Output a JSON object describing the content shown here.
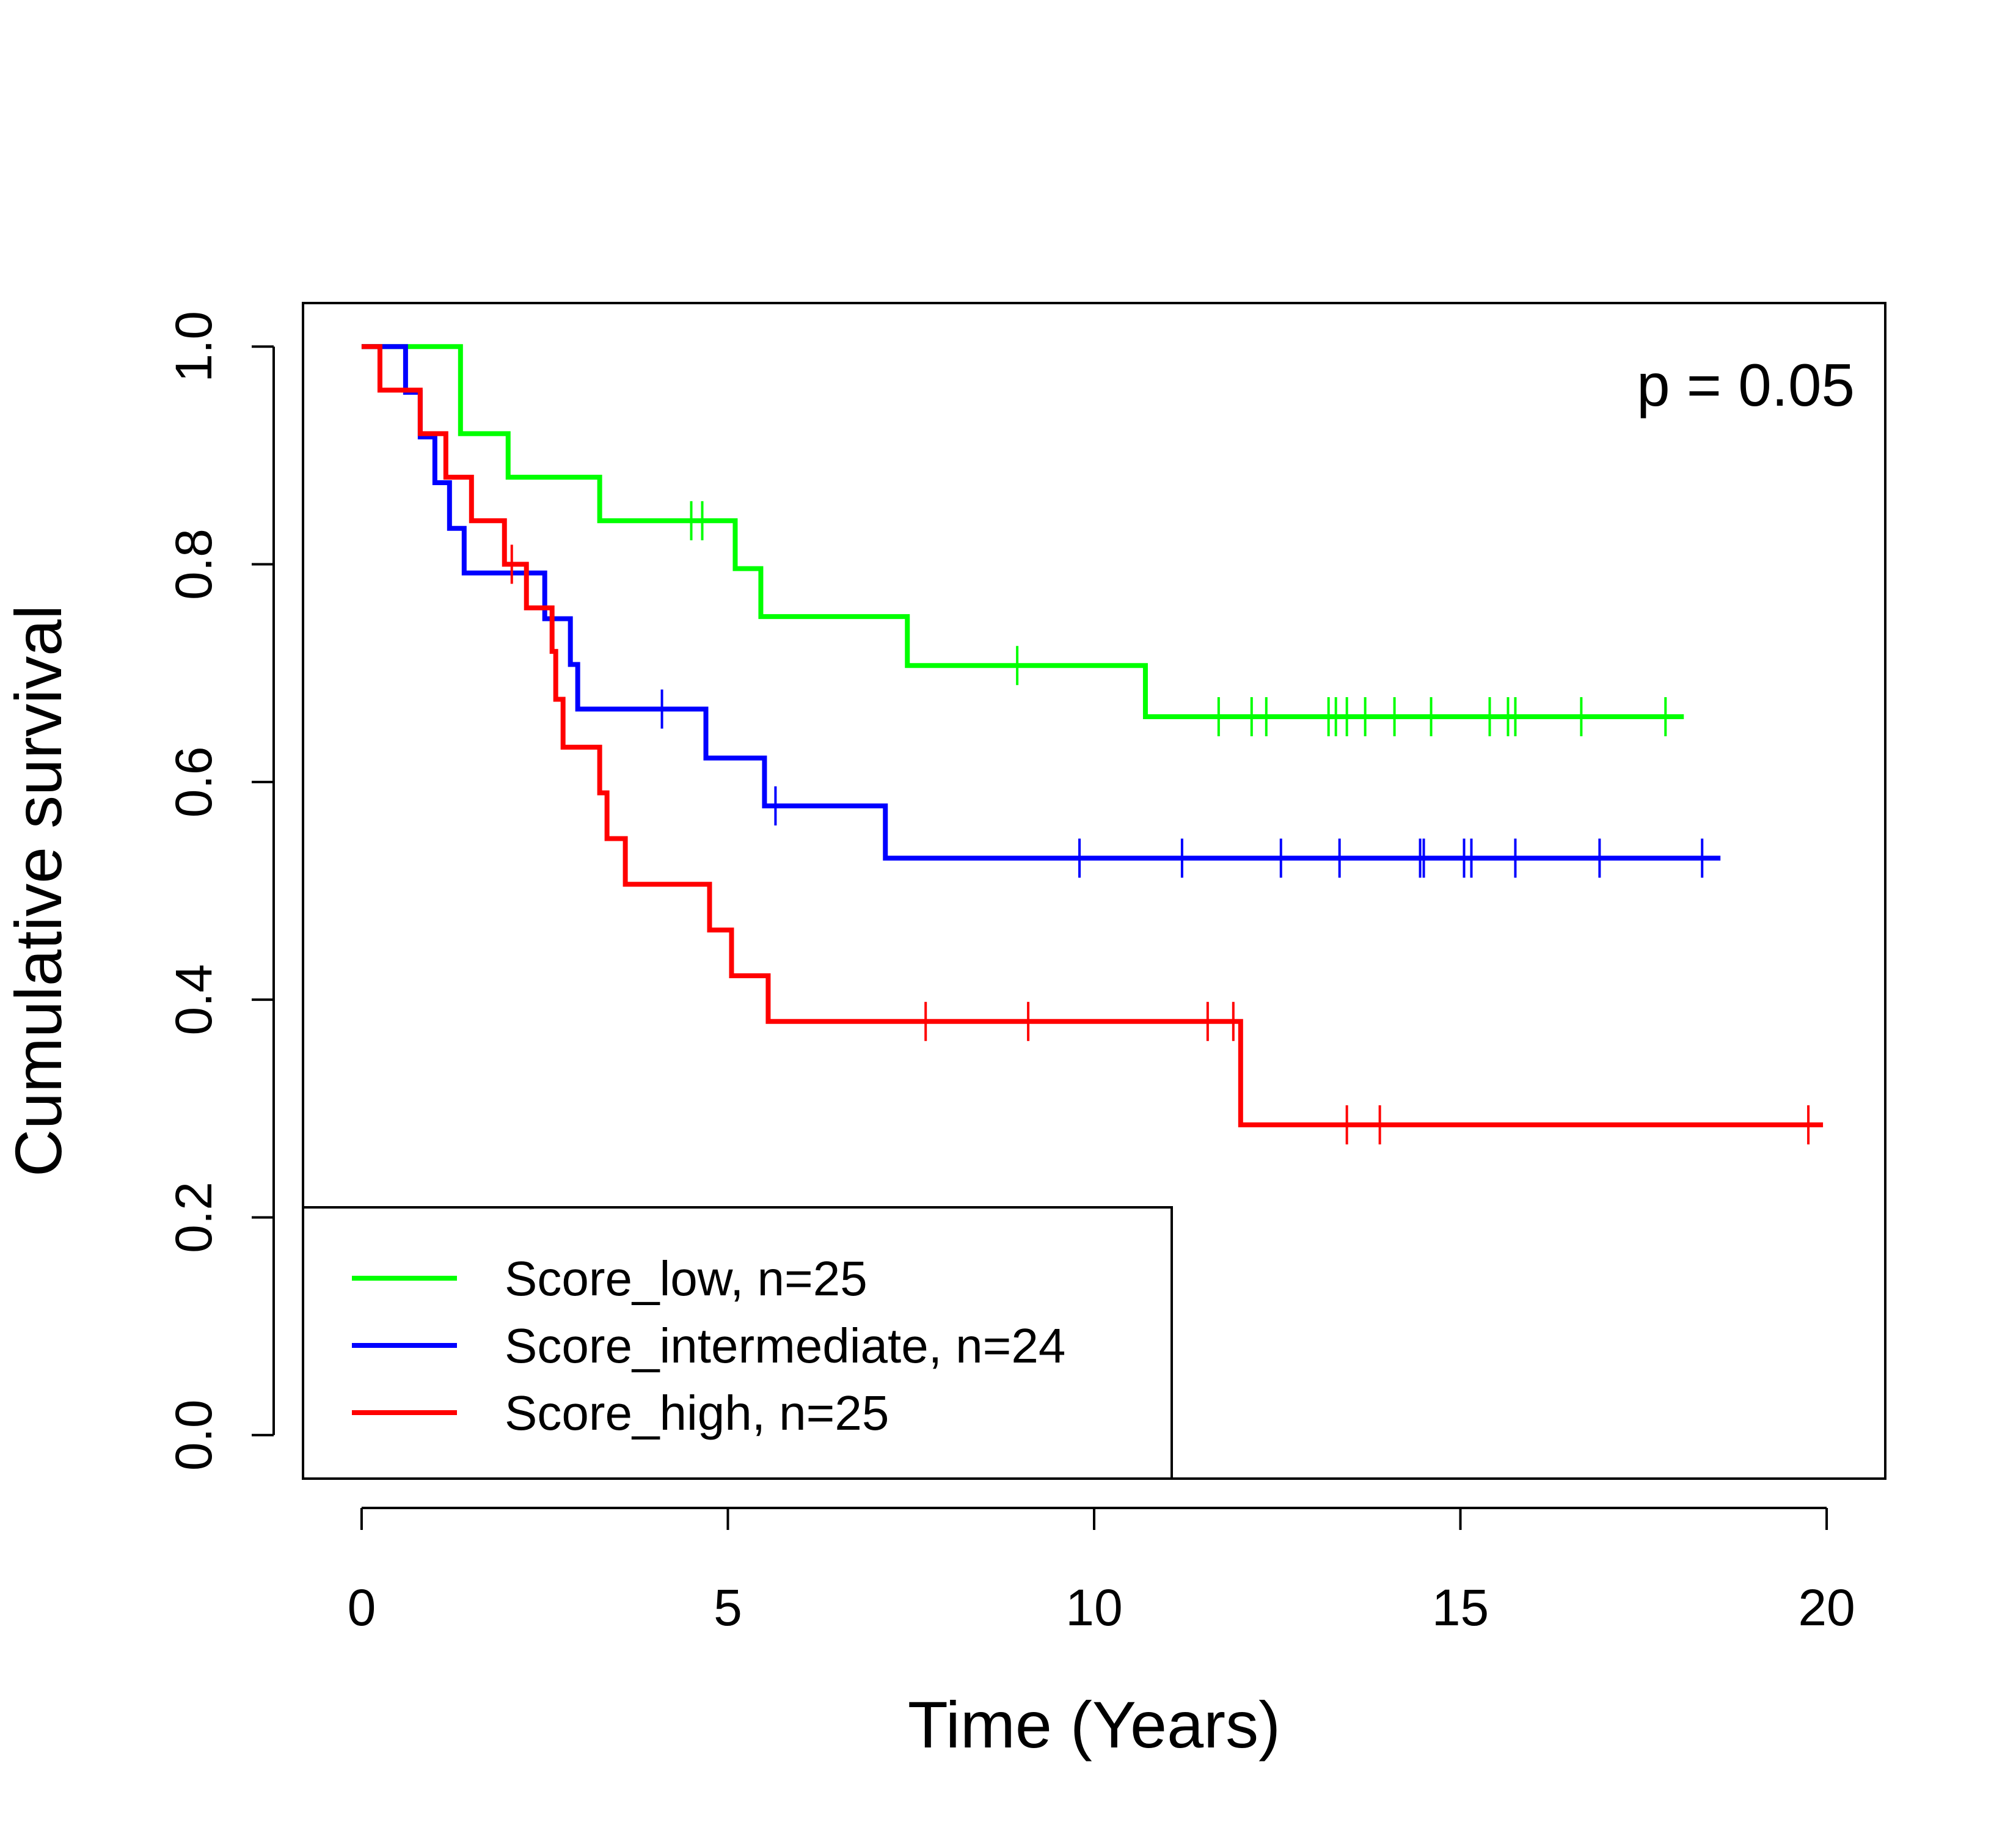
{
  "chart_data": {
    "type": "line",
    "subtype": "kaplan-meier-step",
    "title": "",
    "xlabel": "Time (Years)",
    "ylabel": "Cumulative survival",
    "xlim": [
      -0.8,
      20.8
    ],
    "ylim": [
      -0.04,
      1.04
    ],
    "xticks": [
      0,
      5,
      10,
      15,
      20
    ],
    "yticks": [
      0.0,
      0.2,
      0.4,
      0.6,
      0.8,
      1.0
    ],
    "xtick_labels": [
      "0",
      "5",
      "10",
      "15",
      "20"
    ],
    "ytick_labels": [
      "0.0",
      "0.2",
      "0.4",
      "0.6",
      "0.8",
      "1.0"
    ],
    "annotation": "p = 0.05",
    "grid": false,
    "legend_position": "bottom-left",
    "series": [
      {
        "name": "Score_low, n=25",
        "color": "#00ff00",
        "steps": [
          [
            0.0,
            1.0
          ],
          [
            1.35,
            0.92
          ],
          [
            2.0,
            0.88
          ],
          [
            3.25,
            0.84
          ],
          [
            5.1,
            0.796
          ],
          [
            5.45,
            0.752
          ],
          [
            7.45,
            0.707
          ],
          [
            10.7,
            0.66
          ]
        ],
        "end_x": 18.05,
        "censored": [
          4.5,
          4.65,
          8.95,
          11.7,
          12.15,
          12.35,
          13.2,
          13.3,
          13.45,
          13.7,
          14.1,
          14.6,
          15.4,
          15.65,
          15.75,
          16.65,
          17.8
        ]
      },
      {
        "name": "Score_intermediate, n=24",
        "color": "#0000ff",
        "steps": [
          [
            0.0,
            1.0
          ],
          [
            0.6,
            0.958
          ],
          [
            0.8,
            0.917
          ],
          [
            1.0,
            0.875
          ],
          [
            1.2,
            0.833
          ],
          [
            1.4,
            0.792
          ],
          [
            2.5,
            0.75
          ],
          [
            2.85,
            0.708
          ],
          [
            2.95,
            0.667
          ],
          [
            4.7,
            0.622
          ],
          [
            5.5,
            0.578
          ],
          [
            7.15,
            0.53
          ]
        ],
        "end_x": 18.55,
        "censored": [
          4.1,
          5.65,
          9.8,
          11.2,
          12.55,
          13.35,
          14.45,
          14.5,
          15.05,
          15.15,
          15.75,
          16.9,
          18.3
        ]
      },
      {
        "name": "Score_high, n=25",
        "color": "#ff0000",
        "steps": [
          [
            0.0,
            1.0
          ],
          [
            0.25,
            0.96
          ],
          [
            0.8,
            0.92
          ],
          [
            1.15,
            0.88
          ],
          [
            1.5,
            0.84
          ],
          [
            1.95,
            0.8
          ],
          [
            2.25,
            0.76
          ],
          [
            2.6,
            0.72
          ],
          [
            2.65,
            0.676
          ],
          [
            2.75,
            0.632
          ],
          [
            3.25,
            0.59
          ],
          [
            3.35,
            0.548
          ],
          [
            3.6,
            0.506
          ],
          [
            4.75,
            0.464
          ],
          [
            5.05,
            0.422
          ],
          [
            5.55,
            0.38
          ],
          [
            12.0,
            0.285
          ]
        ],
        "end_x": 19.95,
        "censored": [
          2.05,
          7.7,
          9.1,
          11.55,
          11.9,
          13.45,
          13.9,
          19.75
        ]
      }
    ]
  }
}
